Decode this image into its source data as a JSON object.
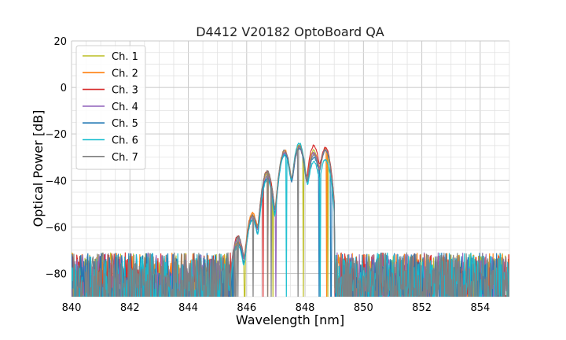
{
  "chart_data": {
    "type": "line",
    "title": "D4412 V20182 OptoBoard QA",
    "xlabel": "Wavelength [nm]",
    "ylabel": "Optical Power [dB]",
    "xlim": [
      840,
      855
    ],
    "ylim": [
      -90,
      20
    ],
    "xticks": [
      840,
      842,
      844,
      846,
      848,
      850,
      852,
      854
    ],
    "yticks": [
      -80,
      -60,
      -40,
      -20,
      0,
      20
    ],
    "grid": true,
    "legend_position": "top-left",
    "noise_floor": {
      "center": -82,
      "low": -90,
      "high": -72
    },
    "series": [
      {
        "name": "Ch. 1",
        "color": "#bcbd22",
        "peaks": [
          [
            845.7,
            -67
          ],
          [
            846.2,
            -55
          ],
          [
            846.7,
            -37
          ],
          [
            847.3,
            -28
          ],
          [
            847.8,
            -25
          ],
          [
            848.3,
            -27
          ],
          [
            848.7,
            -27
          ]
        ]
      },
      {
        "name": "Ch. 2",
        "color": "#ff7f0e",
        "peaks": [
          [
            845.7,
            -66
          ],
          [
            846.2,
            -54
          ],
          [
            846.7,
            -36
          ],
          [
            847.3,
            -27
          ],
          [
            847.8,
            -25
          ],
          [
            848.3,
            -28
          ],
          [
            848.7,
            -26
          ]
        ]
      },
      {
        "name": "Ch. 3",
        "color": "#d62728",
        "peaks": [
          [
            845.7,
            -64
          ],
          [
            846.2,
            -55
          ],
          [
            846.7,
            -36
          ],
          [
            847.3,
            -28
          ],
          [
            847.8,
            -26
          ],
          [
            848.3,
            -25
          ],
          [
            848.7,
            -26
          ]
        ]
      },
      {
        "name": "Ch. 4",
        "color": "#9467bd",
        "peaks": [
          [
            845.7,
            -65
          ],
          [
            846.2,
            -56
          ],
          [
            846.7,
            -38
          ],
          [
            847.3,
            -28
          ],
          [
            847.8,
            -26
          ],
          [
            848.3,
            -28
          ],
          [
            848.7,
            -27
          ]
        ]
      },
      {
        "name": "Ch. 5",
        "color": "#1f77b4",
        "peaks": [
          [
            845.7,
            -67
          ],
          [
            846.2,
            -57
          ],
          [
            846.7,
            -39
          ],
          [
            847.3,
            -29
          ],
          [
            847.8,
            -26
          ],
          [
            848.3,
            -30
          ],
          [
            848.7,
            -27
          ]
        ]
      },
      {
        "name": "Ch. 6",
        "color": "#17becf",
        "peaks": [
          [
            845.7,
            -68
          ],
          [
            846.2,
            -57
          ],
          [
            846.7,
            -40
          ],
          [
            847.3,
            -29
          ],
          [
            847.8,
            -24
          ],
          [
            848.3,
            -32
          ],
          [
            848.7,
            -31
          ]
        ]
      },
      {
        "name": "Ch. 7",
        "color": "#7f7f7f",
        "peaks": [
          [
            845.7,
            -64
          ],
          [
            846.2,
            -55
          ],
          [
            846.7,
            -36
          ],
          [
            847.3,
            -27
          ],
          [
            847.8,
            -25
          ],
          [
            848.3,
            -29
          ],
          [
            848.7,
            -27
          ]
        ]
      }
    ]
  }
}
